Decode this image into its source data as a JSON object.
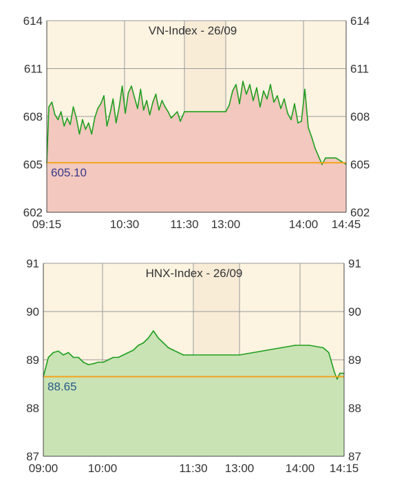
{
  "colors": {
    "plot_bg": "#fcf3e0",
    "lunch_bg": "#f8ecd7",
    "grid": "#9a9a9a",
    "axis": "#444444",
    "ref_line": "#f5a31a",
    "vn_line": "#1e9e1e",
    "vn_fill": "#f2c8bf",
    "vn_drop": "#dd2222",
    "vn_label": "#3a3a8a",
    "hnx_line": "#1e9e1e",
    "hnx_fill": "#c9e3b5",
    "hnx_drop": "#dd2222",
    "hnx_label": "#2a5a8a"
  },
  "chart_data": [
    {
      "type": "line",
      "title": "VN-Index - 26/09",
      "ylim": [
        602,
        614
      ],
      "y_ticks": [
        "602",
        "605",
        "608",
        "611",
        "614"
      ],
      "x_ticks": [
        "09:15",
        "10:30",
        "11:30",
        "13:00",
        "14:00",
        "14:45"
      ],
      "reference": 605.1,
      "reference_label": "605.10",
      "lunch_break": [
        "11:30",
        "13:00"
      ],
      "grid": true,
      "series": [
        {
          "x": [
            "09:15",
            "09:17",
            "09:20",
            "09:23",
            "09:26",
            "09:29",
            "09:32",
            "09:35",
            "09:38",
            "09:41",
            "09:44",
            "09:47",
            "09:50",
            "09:53",
            "09:56",
            "09:59",
            "10:02",
            "10:05",
            "10:08",
            "10:11",
            "10:14",
            "10:17",
            "10:20",
            "10:23",
            "10:26",
            "10:29",
            "10:32",
            "10:35",
            "10:38",
            "10:41",
            "10:44",
            "10:47",
            "10:50",
            "10:53",
            "10:56",
            "10:59",
            "11:02",
            "11:05",
            "11:08",
            "11:11",
            "11:14",
            "11:17",
            "11:20",
            "11:23",
            "11:26",
            "11:30",
            "13:00",
            "13:03",
            "13:06",
            "13:09",
            "13:12",
            "13:15",
            "13:18",
            "13:21",
            "13:24",
            "13:27",
            "13:30",
            "13:33",
            "13:36",
            "13:39",
            "13:42",
            "13:45",
            "13:48",
            "13:51",
            "13:54",
            "13:57",
            "14:00",
            "14:03",
            "14:06",
            "14:09",
            "14:12",
            "14:15",
            "14:18",
            "14:21",
            "14:24",
            "14:27",
            "14:30",
            "14:36",
            "14:45"
          ],
          "values": [
            605.1,
            608.6,
            608.9,
            608.1,
            607.8,
            608.3,
            607.4,
            607.9,
            607.5,
            608.6,
            607.9,
            606.9,
            607.8,
            607.2,
            607.6,
            606.9,
            607.9,
            608.5,
            608.8,
            609.3,
            607.4,
            608.2,
            609.1,
            607.6,
            608.6,
            609.9,
            608.2,
            609.5,
            609.9,
            609.2,
            608.5,
            609.7,
            608.4,
            609.0,
            608.1,
            608.9,
            609.4,
            608.4,
            609.0,
            608.6,
            608.3,
            607.9,
            608.1,
            608.3,
            607.7,
            608.3,
            608.3,
            608.7,
            609.6,
            610.0,
            608.8,
            610.2,
            609.4,
            610.0,
            609.0,
            609.8,
            608.6,
            609.6,
            609.1,
            610.0,
            608.9,
            609.3,
            608.5,
            609.1,
            608.2,
            607.8,
            608.8,
            607.6,
            607.7,
            609.7,
            607.3,
            606.7,
            606.0,
            605.5,
            605.0,
            605.4,
            605.4,
            605.4,
            605.0
          ]
        }
      ]
    },
    {
      "type": "line",
      "title": "HNX-Index - 26/09",
      "ylim": [
        87,
        91
      ],
      "y_ticks": [
        "87",
        "88",
        "89",
        "90",
        "91"
      ],
      "x_ticks": [
        "09:00",
        "10:00",
        "11:30",
        "13:00",
        "14:00",
        "14:15"
      ],
      "reference": 88.65,
      "reference_label": "88.65",
      "lunch_break": [
        "11:30",
        "13:00"
      ],
      "grid": true,
      "series": [
        {
          "x": [
            "09:00",
            "09:05",
            "09:10",
            "09:15",
            "09:20",
            "09:25",
            "09:30",
            "09:35",
            "09:40",
            "09:45",
            "09:50",
            "09:55",
            "10:00",
            "10:05",
            "10:10",
            "10:15",
            "10:20",
            "10:25",
            "10:30",
            "10:35",
            "10:40",
            "10:45",
            "10:50",
            "10:55",
            "11:00",
            "11:05",
            "11:10",
            "11:15",
            "11:20",
            "11:25",
            "11:30",
            "13:00",
            "13:10",
            "13:20",
            "13:30",
            "13:40",
            "13:50",
            "14:00",
            "14:02",
            "14:04",
            "14:06",
            "14:08",
            "14:10",
            "14:12",
            "14:15"
          ],
          "values": [
            88.65,
            89.05,
            89.15,
            89.18,
            89.1,
            89.15,
            89.05,
            89.05,
            88.95,
            88.9,
            88.92,
            88.95,
            88.95,
            89.0,
            89.05,
            89.05,
            89.1,
            89.15,
            89.2,
            89.3,
            89.35,
            89.45,
            89.6,
            89.45,
            89.35,
            89.25,
            89.2,
            89.15,
            89.1,
            89.1,
            89.1,
            89.1,
            89.15,
            89.2,
            89.25,
            89.3,
            89.3,
            89.25,
            89.2,
            89.15,
            88.95,
            88.75,
            88.6,
            88.72,
            88.72
          ]
        }
      ]
    }
  ]
}
